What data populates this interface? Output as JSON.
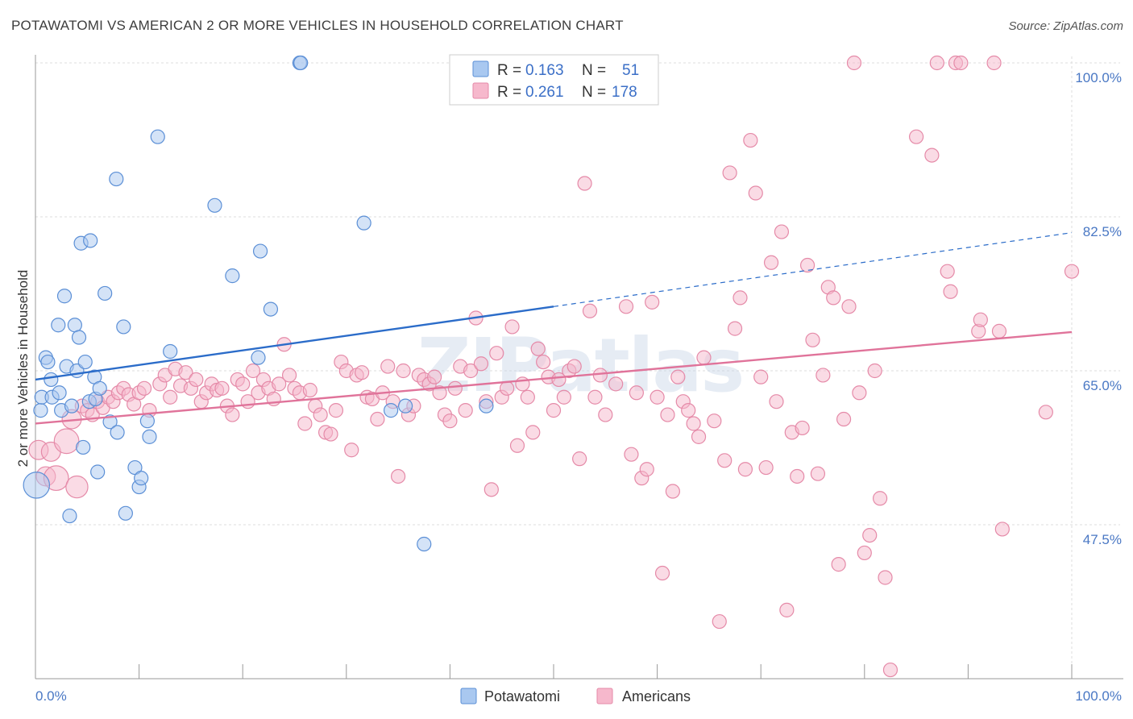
{
  "title": "POTAWATOMI VS AMERICAN 2 OR MORE VEHICLES IN HOUSEHOLD CORRELATION CHART",
  "source": "Source: ZipAtlas.com",
  "watermark": "ZIPatlas",
  "colors": {
    "potawatomi_fill": "#a9c8f0",
    "potawatomi_stroke": "#5b8fd6",
    "potawatomi_line": "#2b6cc9",
    "americans_fill": "#f6b8cc",
    "americans_stroke": "#e58aa8",
    "americans_line": "#e0739a",
    "grid": "#dddddd",
    "tick_text": "#4a78c4"
  },
  "chart_data": {
    "type": "scatter",
    "title": "POTAWATOMI VS AMERICAN 2 OR MORE VEHICLES IN HOUSEHOLD CORRELATION CHART",
    "xlabel": "",
    "ylabel": "2 or more Vehicles in Household",
    "xlim": [
      0,
      100
    ],
    "ylim": [
      30,
      100
    ],
    "x_tick_labels": [
      "0.0%",
      "100.0%"
    ],
    "y_ticks": [
      47.5,
      65.0,
      82.5,
      100.0
    ],
    "y_tick_labels": [
      "47.5%",
      "65.0%",
      "82.5%",
      "100.0%"
    ],
    "grid": true,
    "legend_placement": "top-center",
    "legend": [
      {
        "r_label": "R =",
        "r": "0.163",
        "n_label": "N =",
        "n": "51"
      },
      {
        "r_label": "R =",
        "r": "0.261",
        "n_label": "N =",
        "n": "178"
      }
    ],
    "series": [
      {
        "name": "Potawatomi",
        "trend": {
          "x0": 0,
          "y0": 64.0,
          "x1": 50,
          "y1": 72.3,
          "dashed_to_x": 100,
          "dashed_to_y": 80.7
        },
        "points": [
          [
            0.1,
            52.0,
            1.9
          ],
          [
            0.5,
            60.5,
            1
          ],
          [
            0.6,
            62.0,
            1
          ],
          [
            1.0,
            66.5,
            1
          ],
          [
            1.2,
            66.0,
            1
          ],
          [
            1.5,
            64.0,
            1
          ],
          [
            1.6,
            62.0,
            1
          ],
          [
            2.2,
            70.2,
            1
          ],
          [
            2.3,
            62.5,
            1
          ],
          [
            2.5,
            60.5,
            1
          ],
          [
            2.8,
            73.5,
            1
          ],
          [
            3.0,
            65.5,
            1
          ],
          [
            3.3,
            48.5,
            1
          ],
          [
            3.5,
            61.0,
            1
          ],
          [
            3.8,
            70.2,
            1
          ],
          [
            4.0,
            65.0,
            1
          ],
          [
            4.2,
            68.8,
            1
          ],
          [
            4.4,
            79.5,
            1
          ],
          [
            4.6,
            56.3,
            1
          ],
          [
            4.8,
            66.0,
            1
          ],
          [
            5.2,
            61.5,
            1
          ],
          [
            5.3,
            79.8,
            1
          ],
          [
            5.7,
            64.3,
            1
          ],
          [
            5.8,
            61.8,
            1
          ],
          [
            6.0,
            53.5,
            1
          ],
          [
            6.2,
            63.0,
            1
          ],
          [
            6.7,
            73.8,
            1
          ],
          [
            7.2,
            59.2,
            1
          ],
          [
            7.8,
            86.8,
            1
          ],
          [
            7.9,
            58.0,
            1
          ],
          [
            8.5,
            70.0,
            1
          ],
          [
            8.7,
            48.8,
            1
          ],
          [
            9.6,
            54.0,
            1
          ],
          [
            10.0,
            51.8,
            1
          ],
          [
            10.2,
            52.8,
            1
          ],
          [
            10.8,
            59.3,
            1
          ],
          [
            11.0,
            57.5,
            1
          ],
          [
            11.8,
            91.6,
            1
          ],
          [
            13.0,
            67.2,
            1
          ],
          [
            17.3,
            83.8,
            1
          ],
          [
            19.0,
            75.8,
            1
          ],
          [
            21.5,
            66.5,
            1
          ],
          [
            21.7,
            78.6,
            1
          ],
          [
            22.7,
            72.0,
            1
          ],
          [
            25.5,
            100.0,
            1
          ],
          [
            25.6,
            100.0,
            1
          ],
          [
            31.7,
            81.8,
            1
          ],
          [
            34.3,
            60.5,
            1
          ],
          [
            35.7,
            61.0,
            1
          ],
          [
            37.5,
            45.3,
            1
          ],
          [
            43.5,
            61.0,
            1
          ]
        ]
      },
      {
        "name": "Americans",
        "trend": {
          "x0": 0,
          "y0": 59.0,
          "x1": 100,
          "y1": 69.4
        },
        "points": [
          [
            0.3,
            56.0,
            1.4
          ],
          [
            1.0,
            53.0,
            1.4
          ],
          [
            1.5,
            55.8,
            1.4
          ],
          [
            2.0,
            52.8,
            1.8
          ],
          [
            3.0,
            57.0,
            1.8
          ],
          [
            3.5,
            59.5,
            1.4
          ],
          [
            4.0,
            51.8,
            1.6
          ],
          [
            4.5,
            61.0,
            1
          ],
          [
            5.0,
            60.5,
            1
          ],
          [
            5.5,
            60.0,
            1
          ],
          [
            6.0,
            61.5,
            1
          ],
          [
            6.5,
            60.8,
            1
          ],
          [
            7.0,
            62.0,
            1
          ],
          [
            7.5,
            61.5,
            1
          ],
          [
            8.0,
            62.5,
            1
          ],
          [
            8.5,
            63.0,
            1
          ],
          [
            9.0,
            62.3,
            1
          ],
          [
            9.5,
            61.2,
            1
          ],
          [
            10.0,
            62.5,
            1
          ],
          [
            10.5,
            63.0,
            1
          ],
          [
            11.0,
            60.5,
            1
          ],
          [
            12.0,
            63.5,
            1
          ],
          [
            12.5,
            64.5,
            1
          ],
          [
            13.0,
            62.0,
            1
          ],
          [
            13.5,
            65.2,
            1
          ],
          [
            14.0,
            63.3,
            1
          ],
          [
            14.5,
            64.8,
            1
          ],
          [
            15.0,
            63.0,
            1
          ],
          [
            15.5,
            64.0,
            1
          ],
          [
            16.0,
            61.5,
            1
          ],
          [
            16.5,
            62.5,
            1
          ],
          [
            17.0,
            63.5,
            1
          ],
          [
            17.5,
            62.8,
            1
          ],
          [
            18.0,
            63.0,
            1
          ],
          [
            18.5,
            61.0,
            1
          ],
          [
            19.0,
            60.0,
            1
          ],
          [
            19.5,
            64.0,
            1
          ],
          [
            20.0,
            63.5,
            1
          ],
          [
            20.5,
            61.5,
            1
          ],
          [
            21.0,
            65.0,
            1
          ],
          [
            21.5,
            62.5,
            1
          ],
          [
            22.0,
            64.0,
            1
          ],
          [
            22.5,
            63.0,
            1
          ],
          [
            23.0,
            61.8,
            1
          ],
          [
            23.5,
            63.5,
            1
          ],
          [
            24.0,
            68.0,
            1
          ],
          [
            24.5,
            64.5,
            1
          ],
          [
            25.0,
            63.0,
            1
          ],
          [
            25.5,
            62.5,
            1
          ],
          [
            26.0,
            59.0,
            1
          ],
          [
            26.5,
            62.8,
            1
          ],
          [
            27.0,
            61.0,
            1
          ],
          [
            27.5,
            60.0,
            1
          ],
          [
            28.0,
            58.0,
            1
          ],
          [
            28.5,
            57.8,
            1
          ],
          [
            29.0,
            60.5,
            1
          ],
          [
            29.5,
            66.0,
            1
          ],
          [
            30.0,
            65.0,
            1
          ],
          [
            30.5,
            56.0,
            1
          ],
          [
            31.0,
            64.5,
            1
          ],
          [
            31.5,
            64.8,
            1
          ],
          [
            32.0,
            62.0,
            1
          ],
          [
            32.5,
            61.8,
            1
          ],
          [
            33.0,
            59.5,
            1
          ],
          [
            33.5,
            62.5,
            1
          ],
          [
            34.0,
            65.5,
            1
          ],
          [
            34.5,
            61.5,
            1
          ],
          [
            35.0,
            53.0,
            1
          ],
          [
            35.5,
            65.0,
            1
          ],
          [
            36.0,
            60.0,
            1
          ],
          [
            36.5,
            61.0,
            1
          ],
          [
            37.0,
            64.5,
            1
          ],
          [
            37.5,
            64.0,
            1
          ],
          [
            38.0,
            63.5,
            1
          ],
          [
            38.5,
            64.3,
            1
          ],
          [
            39.0,
            62.5,
            1
          ],
          [
            39.5,
            60.0,
            1
          ],
          [
            40.0,
            59.3,
            1
          ],
          [
            40.5,
            63.0,
            1
          ],
          [
            41.0,
            65.5,
            1
          ],
          [
            41.5,
            60.5,
            1
          ],
          [
            42.0,
            65.0,
            1
          ],
          [
            42.5,
            71.0,
            1
          ],
          [
            43.0,
            65.8,
            1
          ],
          [
            43.5,
            61.5,
            1
          ],
          [
            44.0,
            51.5,
            1
          ],
          [
            44.5,
            67.0,
            1
          ],
          [
            45.0,
            62.0,
            1
          ],
          [
            45.5,
            63.0,
            1
          ],
          [
            46.0,
            70.0,
            1
          ],
          [
            46.5,
            56.5,
            1
          ],
          [
            47.0,
            63.5,
            1
          ],
          [
            47.5,
            62.0,
            1
          ],
          [
            48.0,
            58.0,
            1
          ],
          [
            48.5,
            67.5,
            1
          ],
          [
            49.0,
            66.0,
            1
          ],
          [
            49.5,
            64.3,
            1
          ],
          [
            50.0,
            60.5,
            1
          ],
          [
            50.5,
            64.0,
            1
          ],
          [
            51.0,
            62.0,
            1
          ],
          [
            51.5,
            65.0,
            1
          ],
          [
            52.0,
            65.5,
            1
          ],
          [
            52.5,
            55.0,
            1
          ],
          [
            53.0,
            86.3,
            1
          ],
          [
            53.5,
            71.8,
            1
          ],
          [
            54.0,
            62.0,
            1
          ],
          [
            54.5,
            64.5,
            1
          ],
          [
            55.0,
            60.0,
            1
          ],
          [
            56.0,
            63.5,
            1
          ],
          [
            57.0,
            72.3,
            1
          ],
          [
            57.5,
            55.5,
            1
          ],
          [
            58.0,
            62.5,
            1
          ],
          [
            58.5,
            52.8,
            1
          ],
          [
            59.0,
            53.8,
            1
          ],
          [
            59.5,
            72.8,
            1
          ],
          [
            60.0,
            62.0,
            1
          ],
          [
            60.5,
            42.0,
            1
          ],
          [
            61.0,
            60.0,
            1
          ],
          [
            61.5,
            51.3,
            1
          ],
          [
            62.0,
            64.3,
            1
          ],
          [
            62.5,
            61.5,
            1
          ],
          [
            63.0,
            60.5,
            1
          ],
          [
            63.5,
            59.0,
            1
          ],
          [
            64.0,
            57.5,
            1
          ],
          [
            64.5,
            66.5,
            1
          ],
          [
            65.5,
            59.3,
            1
          ],
          [
            66.0,
            36.5,
            1
          ],
          [
            66.5,
            54.8,
            1
          ],
          [
            67.0,
            87.5,
            1
          ],
          [
            67.5,
            69.8,
            1
          ],
          [
            68.0,
            73.3,
            1
          ],
          [
            68.5,
            53.8,
            1
          ],
          [
            69.0,
            91.2,
            1
          ],
          [
            69.5,
            85.2,
            1
          ],
          [
            70.0,
            64.3,
            1
          ],
          [
            70.5,
            54.0,
            1
          ],
          [
            71.0,
            77.3,
            1
          ],
          [
            71.5,
            61.5,
            1
          ],
          [
            72.0,
            80.8,
            1
          ],
          [
            72.5,
            37.8,
            1
          ],
          [
            73.0,
            58.0,
            1
          ],
          [
            73.5,
            53.0,
            1
          ],
          [
            74.0,
            58.5,
            1
          ],
          [
            74.5,
            77.0,
            1
          ],
          [
            75.0,
            68.5,
            1
          ],
          [
            75.5,
            53.3,
            1
          ],
          [
            76.0,
            64.5,
            1
          ],
          [
            76.5,
            74.5,
            1
          ],
          [
            77.0,
            73.3,
            1
          ],
          [
            77.5,
            43.0,
            1
          ],
          [
            78.0,
            59.5,
            1
          ],
          [
            78.5,
            72.3,
            1
          ],
          [
            79.0,
            100.0,
            1
          ],
          [
            79.5,
            62.5,
            1
          ],
          [
            80.0,
            44.3,
            1
          ],
          [
            80.5,
            46.3,
            1
          ],
          [
            81.0,
            65.0,
            1
          ],
          [
            81.5,
            50.5,
            1
          ],
          [
            82.0,
            41.5,
            1
          ],
          [
            82.5,
            31.0,
            1
          ],
          [
            85.0,
            91.6,
            1
          ],
          [
            86.5,
            89.5,
            1
          ],
          [
            87.0,
            100.0,
            1
          ],
          [
            88.0,
            76.3,
            1
          ],
          [
            88.3,
            74.0,
            1
          ],
          [
            88.8,
            100.0,
            1
          ],
          [
            89.3,
            100.0,
            1
          ],
          [
            91.0,
            69.5,
            1
          ],
          [
            91.2,
            70.8,
            1
          ],
          [
            92.5,
            100.0,
            1
          ],
          [
            93.0,
            69.5,
            1
          ],
          [
            93.3,
            47.0,
            1
          ],
          [
            97.5,
            60.3,
            1
          ],
          [
            100.0,
            76.3,
            1
          ]
        ]
      }
    ]
  },
  "bottom_legend": [
    {
      "label": "Potawatomi"
    },
    {
      "label": "Americans"
    }
  ]
}
